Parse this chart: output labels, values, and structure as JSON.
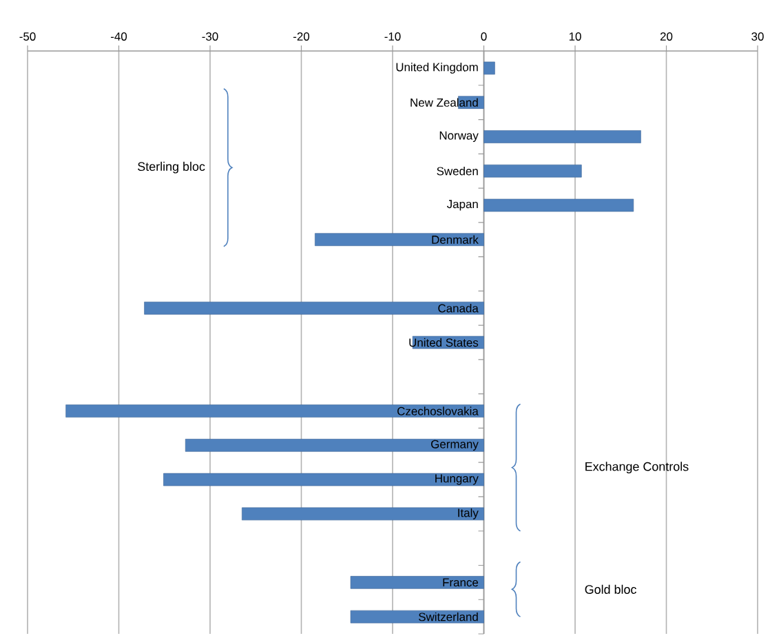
{
  "chart_data": {
    "type": "bar",
    "orientation": "horizontal",
    "categories": [
      "United Kingdom",
      "New Zealand",
      "Norway",
      "Sweden",
      "Japan",
      "Denmark",
      null,
      "Canada",
      "United States",
      null,
      "Czechoslovakia",
      "Germany",
      "Hungary",
      "Italy",
      null,
      "France",
      "Switzerland"
    ],
    "values": [
      1.2,
      -2.8,
      17.2,
      10.7,
      16.4,
      -18.5,
      null,
      -37.2,
      -7.8,
      null,
      -45.8,
      -32.7,
      -35.1,
      -26.5,
      null,
      -14.6,
      -14.6
    ],
    "color": "#4f81bd",
    "xlim": [
      -50,
      30
    ],
    "xticks": [
      -50,
      -40,
      -30,
      -20,
      -10,
      0,
      10,
      20,
      30
    ],
    "grid": "x",
    "annotations": [
      "Sterling bloc",
      "Exchange Controls",
      "Gold bloc"
    ]
  }
}
